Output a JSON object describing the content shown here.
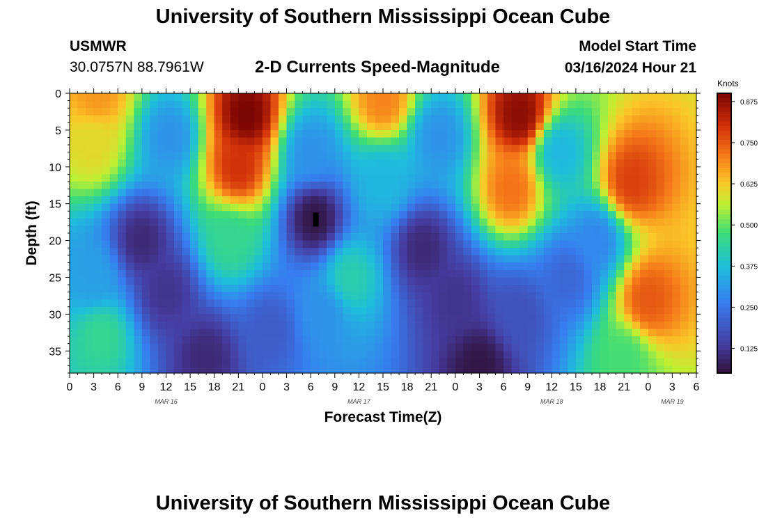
{
  "header": {
    "title": "University of Southern Mississippi Ocean Cube",
    "station": "USMWR",
    "coords": "30.0757N  88.7961W",
    "subtitle": "2-D Currents Speed-Magnitude",
    "model_label": "Model Start Time",
    "model_time": "03/16/2024 Hour 21"
  },
  "footer": {
    "title": "University of Southern Mississippi Ocean Cube"
  },
  "chart_data": {
    "type": "heatmap",
    "title": "2-D Currents Speed-Magnitude",
    "xlabel": "Forecast Time(Z)",
    "ylabel": "Depth (ft)",
    "x_ticks": [
      "0",
      "3",
      "6",
      "9",
      "12",
      "15",
      "18",
      "21",
      "0",
      "3",
      "6",
      "9",
      "12",
      "15",
      "18",
      "21",
      "0",
      "3",
      "6",
      "9",
      "12",
      "15",
      "18",
      "21",
      "0",
      "3",
      "6"
    ],
    "x_range_hours": [
      0,
      78
    ],
    "date_labels": [
      {
        "label": "MAR 16",
        "hour": 12
      },
      {
        "label": "MAR 17",
        "hour": 36
      },
      {
        "label": "MAR 18",
        "hour": 60
      },
      {
        "label": "MAR 19",
        "hour": 75
      }
    ],
    "y_ticks": [
      0,
      5,
      10,
      15,
      20,
      25,
      30,
      35
    ],
    "y_range_ft": [
      0,
      38
    ],
    "colorbar": {
      "label": "Knots",
      "ticks": [
        "0.875",
        "0.750",
        "0.625",
        "0.500",
        "0.375",
        "0.250",
        "0.125"
      ],
      "tick_values": [
        0.875,
        0.75,
        0.625,
        0.5,
        0.375,
        0.25,
        0.125
      ],
      "range": [
        0.05,
        0.9
      ]
    },
    "features": [
      {
        "hour": 3.5,
        "depth": 0,
        "speed": 0.68
      },
      {
        "hour": 3.0,
        "depth": 7,
        "speed": 0.6
      },
      {
        "hour": 12.5,
        "depth": 6,
        "speed": 0.3
      },
      {
        "hour": 9,
        "depth": 20,
        "speed": 0.1
      },
      {
        "hour": 12,
        "depth": 27,
        "speed": 0.12
      },
      {
        "hour": 4,
        "depth": 33,
        "speed": 0.45
      },
      {
        "hour": 3,
        "depth": 25,
        "speed": 0.32
      },
      {
        "hour": 22,
        "depth": 3,
        "speed": 0.9
      },
      {
        "hour": 21,
        "depth": 10,
        "speed": 0.8
      },
      {
        "hour": 20,
        "depth": 20,
        "speed": 0.45
      },
      {
        "hour": 17,
        "depth": 36,
        "speed": 0.1
      },
      {
        "hour": 25,
        "depth": 32,
        "speed": 0.2
      },
      {
        "hour": 30,
        "depth": 8,
        "speed": 0.3
      },
      {
        "hour": 30.5,
        "depth": 17,
        "speed": 0.06
      },
      {
        "hour": 31.5,
        "depth": 30,
        "speed": 0.3
      },
      {
        "hour": 35,
        "depth": 25,
        "speed": 0.42
      },
      {
        "hour": 39,
        "depth": 1,
        "speed": 0.7
      },
      {
        "hour": 39,
        "depth": 12,
        "speed": 0.36
      },
      {
        "hour": 44,
        "depth": 21,
        "speed": 0.1
      },
      {
        "hour": 48,
        "depth": 28,
        "speed": 0.12
      },
      {
        "hour": 51,
        "depth": 37,
        "speed": 0.06
      },
      {
        "hour": 46,
        "depth": 6,
        "speed": 0.3
      },
      {
        "hour": 56,
        "depth": 3,
        "speed": 0.88
      },
      {
        "hour": 55,
        "depth": 13,
        "speed": 0.72
      },
      {
        "hour": 56,
        "depth": 30,
        "speed": 0.18
      },
      {
        "hour": 61,
        "depth": 8,
        "speed": 0.36
      },
      {
        "hour": 62,
        "depth": 25,
        "speed": 0.22
      },
      {
        "hour": 70,
        "depth": 12,
        "speed": 0.78
      },
      {
        "hour": 72,
        "depth": 28,
        "speed": 0.75
      },
      {
        "hour": 69,
        "depth": 36,
        "speed": 0.48
      },
      {
        "hour": 65.5,
        "depth": 20,
        "speed": 0.28
      }
    ]
  }
}
